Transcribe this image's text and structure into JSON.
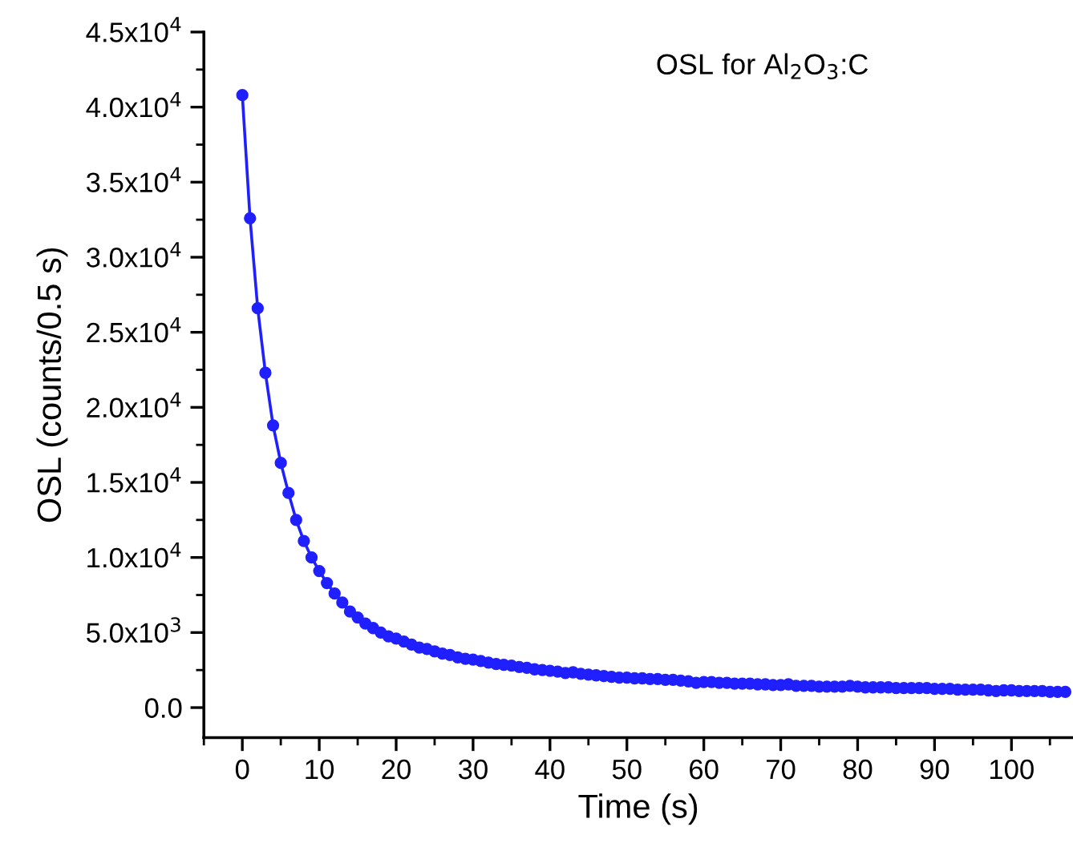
{
  "chart_data": {
    "type": "line",
    "xlabel": "Time (s)",
    "ylabel": "OSL (counts/0.5 s)",
    "annotations": [
      "OSL for Al$_{2}$O$_{3}$:C"
    ],
    "x": [
      0,
      1,
      2,
      3,
      4,
      5,
      6,
      7,
      8,
      9,
      10,
      11,
      12,
      13,
      14,
      15,
      16,
      17,
      18,
      19,
      20,
      21,
      22,
      23,
      24,
      25,
      26,
      27,
      28,
      29,
      30,
      31,
      32,
      33,
      34,
      35,
      36,
      37,
      38,
      39,
      40,
      41,
      42,
      43,
      44,
      45,
      46,
      47,
      48,
      49,
      50,
      51,
      52,
      53,
      54,
      55,
      56,
      57,
      58,
      59,
      60,
      61,
      62,
      63,
      64,
      65,
      66,
      67,
      68,
      69,
      70,
      71,
      72,
      73,
      74,
      75,
      76,
      77,
      78,
      79,
      80,
      81,
      82,
      83,
      84,
      85,
      86,
      87,
      88,
      89,
      90,
      91,
      92,
      93,
      94,
      95,
      96,
      97,
      98,
      99,
      100,
      101,
      102,
      103,
      104,
      105,
      106,
      107
    ],
    "series": [
      {
        "color": "#1f1fff",
        "values": [
          40800,
          32600,
          26600,
          22300,
          18800,
          16300,
          14300,
          12500,
          11100,
          10000,
          9100,
          8300,
          7600,
          7000,
          6400,
          6000,
          5600,
          5300,
          5000,
          4750,
          4600,
          4400,
          4200,
          4000,
          3900,
          3750,
          3600,
          3500,
          3350,
          3250,
          3200,
          3100,
          3000,
          2900,
          2850,
          2800,
          2700,
          2650,
          2550,
          2500,
          2450,
          2400,
          2300,
          2350,
          2250,
          2200,
          2150,
          2100,
          2050,
          2000,
          2000,
          1950,
          1950,
          1900,
          1900,
          1850,
          1850,
          1800,
          1750,
          1650,
          1700,
          1700,
          1650,
          1650,
          1600,
          1600,
          1600,
          1550,
          1550,
          1500,
          1500,
          1550,
          1450,
          1450,
          1450,
          1400,
          1400,
          1400,
          1400,
          1450,
          1400,
          1350,
          1350,
          1350,
          1350,
          1300,
          1300,
          1300,
          1300,
          1300,
          1250,
          1250,
          1250,
          1200,
          1200,
          1200,
          1200,
          1150,
          1100,
          1150,
          1150,
          1100,
          1100,
          1100,
          1100,
          1050,
          1050,
          1050
        ]
      }
    ],
    "xlim": [
      -5,
      108
    ],
    "xticks": [
      0,
      10,
      20,
      30,
      40,
      50,
      60,
      70,
      80,
      90,
      100
    ],
    "ylim": [
      -2000,
      45000
    ],
    "yticks": [
      {
        "value": 0,
        "label": "0.0"
      },
      {
        "value": 5000,
        "label": "5.0x10$^{3}$"
      },
      {
        "value": 10000,
        "label": "1.0x10$^{4}$"
      },
      {
        "value": 15000,
        "label": "1.5x10$^{4}$"
      },
      {
        "value": 20000,
        "label": "2.0x10$^{4}$"
      },
      {
        "value": 25000,
        "label": "2.5x10$^{4}$"
      },
      {
        "value": 30000,
        "label": "3.0x10$^{4}$"
      },
      {
        "value": 35000,
        "label": "3.5x10$^{4}$"
      },
      {
        "value": 40000,
        "label": "4.0x10$^{4}$"
      },
      {
        "value": 45000,
        "label": "4.5x10$^{4}$"
      }
    ],
    "marker": "circle",
    "line_style": "solid",
    "grid": false,
    "legend": false
  }
}
